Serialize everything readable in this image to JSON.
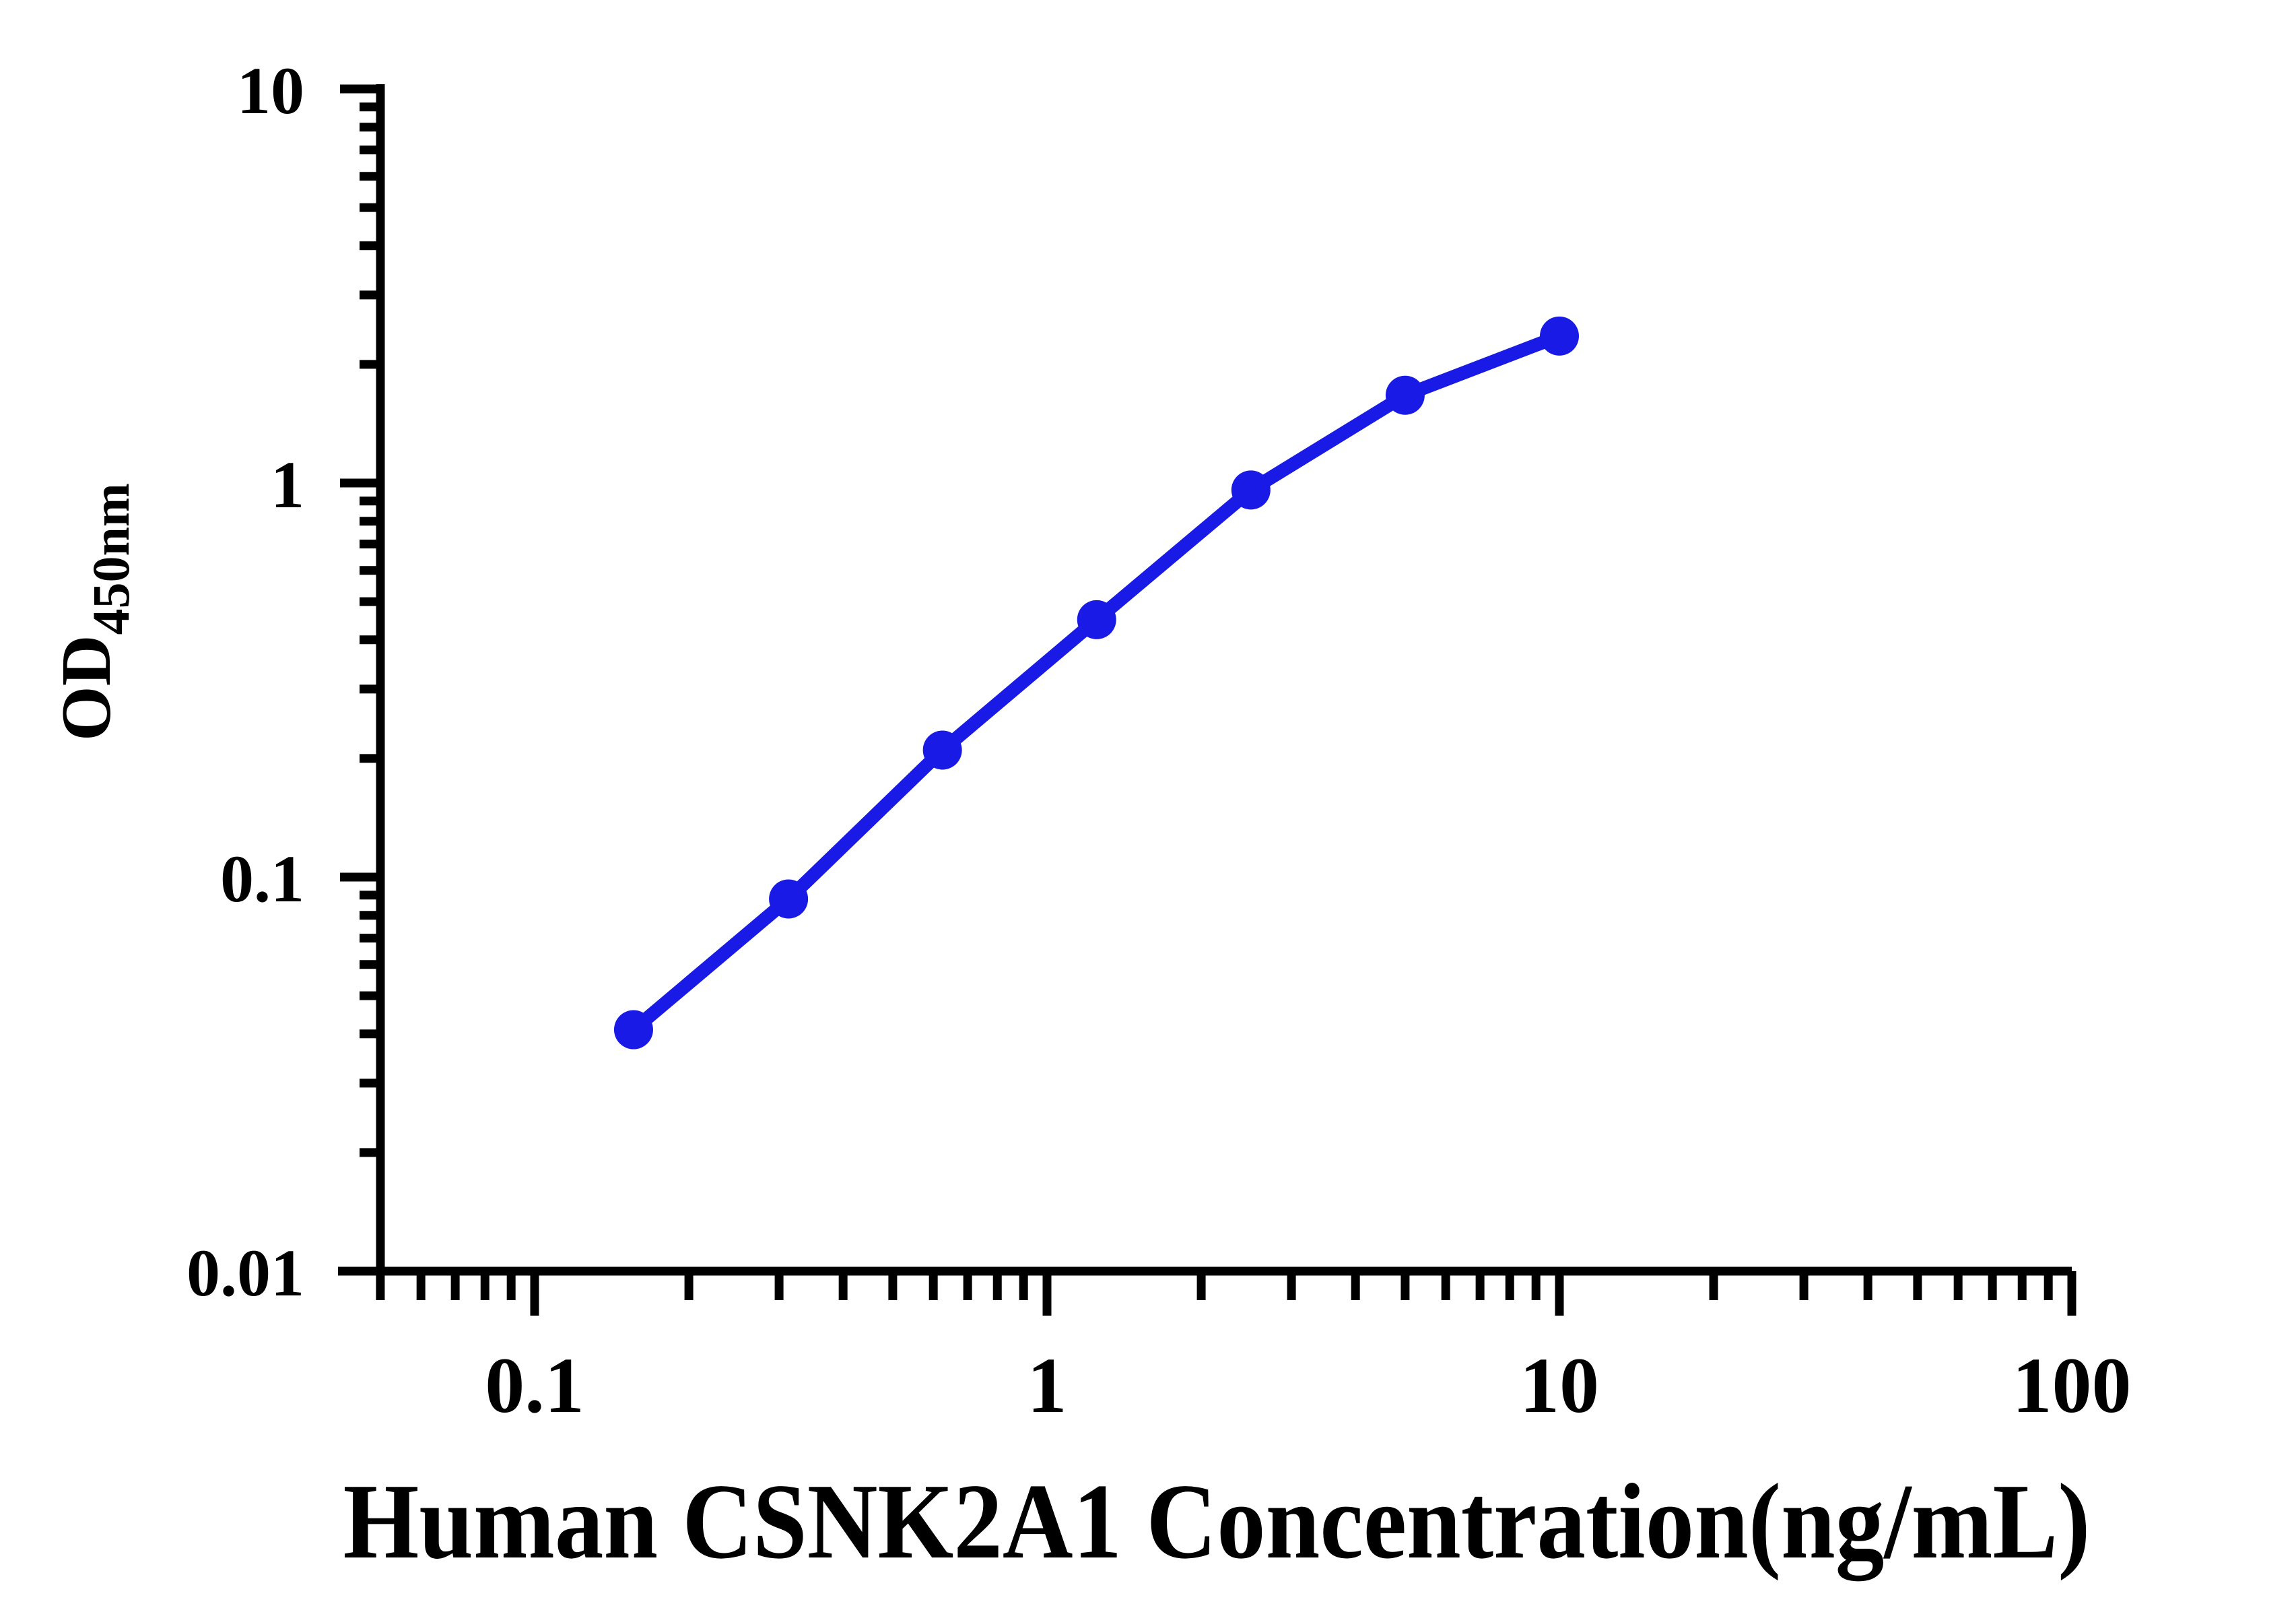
{
  "chart_data": {
    "type": "line",
    "title": "",
    "xlabel": "Human CSNK2A1 Concentration(ng/mL)",
    "ylabel": "OD450nm",
    "ylabel_main": "OD",
    "ylabel_sub": "450nm",
    "x": [
      0.156,
      0.313,
      0.625,
      1.25,
      2.5,
      5,
      10
    ],
    "y": [
      0.041,
      0.088,
      0.21,
      0.45,
      0.96,
      1.67,
      2.36
    ],
    "x_scale": "log",
    "y_scale": "log",
    "xlim": [
      0.05,
      100
    ],
    "ylim": [
      0.01,
      10
    ],
    "x_ticks": [
      {
        "label": "0.1",
        "value": 0.1
      },
      {
        "label": "1",
        "value": 1
      },
      {
        "label": "10",
        "value": 10
      },
      {
        "label": "100",
        "value": 100
      }
    ],
    "y_ticks": [
      {
        "label": "10",
        "value": 10
      },
      {
        "label": "1",
        "value": 1
      },
      {
        "label": "0.1",
        "value": 0.1
      },
      {
        "label": "0.01",
        "value": 0.01
      }
    ],
    "grid": false,
    "legend": "none",
    "marker": "circle",
    "series_color": "#1a1ae6",
    "axis_color": "#000000",
    "background_color": "#ffffff"
  }
}
